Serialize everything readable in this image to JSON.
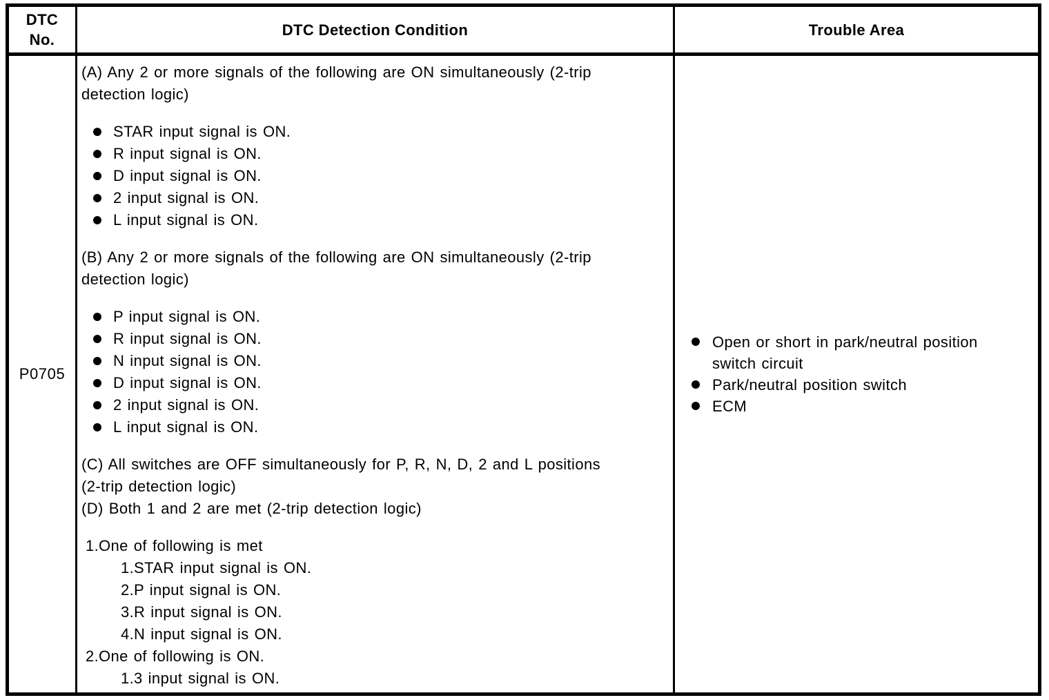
{
  "page": {
    "background": "#ffffff",
    "ink": "#000000"
  },
  "table": {
    "headers": {
      "dtc_no": "DTC\nNo.",
      "detection": "DTC Detection Condition",
      "trouble": "Trouble Area"
    },
    "row": {
      "dtc_no": "P0705",
      "detection": {
        "para_a": "(A) Any 2 or more signals of the following are ON simultaneously (2-trip\ndetection logic)",
        "bullets_a": [
          "STAR input signal is ON.",
          "R input signal is ON.",
          "D input signal is ON.",
          "2 input signal is ON.",
          "L input signal is ON."
        ],
        "para_b": "(B) Any 2 or more signals of the following are ON simultaneously (2-trip\ndetection logic)",
        "bullets_b": [
          "P input signal is ON.",
          "R input signal is ON.",
          "N input signal is ON.",
          "D input signal is ON.",
          "2 input signal is ON.",
          "L input signal is ON."
        ],
        "para_c": "(C) All switches are OFF simultaneously for P, R, N, D, 2 and L positions\n(2-trip detection logic)",
        "para_d": "(D) Both 1 and 2 are met (2-trip detection logic)",
        "list": [
          {
            "num": "1.",
            "label": "One of following is met",
            "sub": [
              {
                "num": "1.",
                "label": "STAR input signal is ON."
              },
              {
                "num": "2.",
                "label": "P input signal is ON."
              },
              {
                "num": "3.",
                "label": "R input signal is ON."
              },
              {
                "num": "4.",
                "label": "N input signal is ON."
              }
            ]
          },
          {
            "num": "2.",
            "label": "One of following is ON.",
            "sub": [
              {
                "num": "1.",
                "label": "3 input signal is ON."
              }
            ]
          }
        ]
      },
      "trouble_area": [
        "Open or short in park/neutral position\nswitch circuit",
        "Park/neutral position switch",
        "ECM"
      ]
    }
  }
}
